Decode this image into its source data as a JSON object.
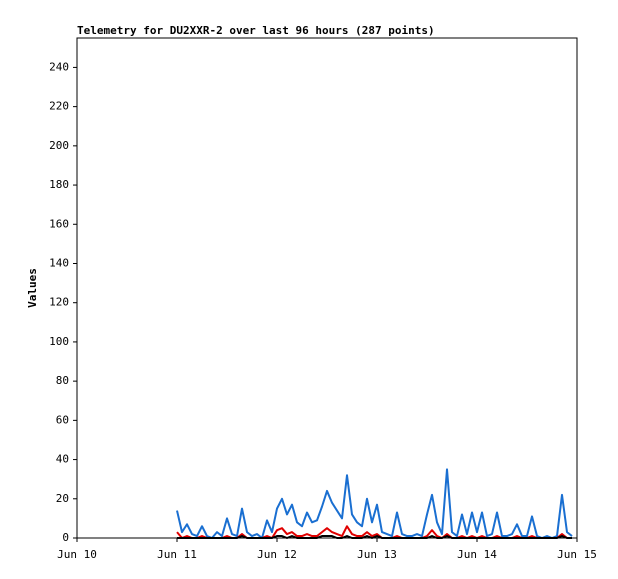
{
  "chart_data": {
    "type": "line",
    "title": "Telemetry for DU2XXR-2 over last 96 hours (287 points)",
    "y_label": "Values",
    "xlim": [
      0,
      5
    ],
    "xticks": [
      {
        "value": 0,
        "label": "Jun 10"
      },
      {
        "value": 1,
        "label": "Jun 11"
      },
      {
        "value": 2,
        "label": "Jun 12"
      },
      {
        "value": 3,
        "label": "Jun 13"
      },
      {
        "value": 4,
        "label": "Jun 14"
      },
      {
        "value": 5,
        "label": "Jun 15"
      }
    ],
    "ylim": [
      0,
      255
    ],
    "yticks": [
      0,
      20,
      40,
      60,
      80,
      100,
      120,
      140,
      160,
      180,
      200,
      220,
      240
    ],
    "x": [
      1.0,
      1.05,
      1.1,
      1.15,
      1.2,
      1.25,
      1.3,
      1.35,
      1.4,
      1.45,
      1.5,
      1.55,
      1.6,
      1.65,
      1.7,
      1.75,
      1.8,
      1.85,
      1.9,
      1.95,
      2.0,
      2.05,
      2.1,
      2.15,
      2.2,
      2.25,
      2.3,
      2.35,
      2.4,
      2.45,
      2.5,
      2.55,
      2.6,
      2.65,
      2.7,
      2.75,
      2.8,
      2.85,
      2.9,
      2.95,
      3.0,
      3.05,
      3.1,
      3.15,
      3.2,
      3.25,
      3.3,
      3.35,
      3.4,
      3.45,
      3.5,
      3.55,
      3.6,
      3.65,
      3.7,
      3.75,
      3.8,
      3.85,
      3.9,
      3.95,
      4.0,
      4.05,
      4.1,
      4.15,
      4.2,
      4.25,
      4.3,
      4.35,
      4.4,
      4.45,
      4.5,
      4.55,
      4.6,
      4.65,
      4.7,
      4.75,
      4.8,
      4.85,
      4.9,
      4.95
    ],
    "series": [
      {
        "name": "blue",
        "color": "#1a6fd1",
        "values": [
          14,
          3,
          7,
          2,
          1,
          6,
          1,
          0,
          3,
          1,
          10,
          2,
          1,
          15,
          3,
          1,
          2,
          0,
          9,
          3,
          15,
          20,
          12,
          17,
          8,
          6,
          13,
          8,
          9,
          16,
          24,
          18,
          14,
          10,
          32,
          12,
          8,
          6,
          20,
          8,
          17,
          3,
          2,
          1,
          13,
          2,
          1,
          1,
          2,
          1,
          12,
          22,
          8,
          2,
          35,
          3,
          1,
          12,
          2,
          13,
          3,
          13,
          1,
          2,
          13,
          1,
          1,
          2,
          7,
          1,
          1,
          11,
          1,
          0,
          1,
          0,
          1,
          22,
          3,
          1
        ]
      },
      {
        "name": "red",
        "color": "#e00000",
        "values": [
          3,
          0,
          1,
          0,
          0,
          1,
          0,
          0,
          0,
          0,
          1,
          0,
          0,
          2,
          0,
          0,
          0,
          0,
          1,
          0,
          4,
          5,
          2,
          3,
          1,
          1,
          2,
          1,
          1,
          3,
          5,
          3,
          2,
          1,
          6,
          2,
          1,
          1,
          3,
          1,
          2,
          0,
          0,
          0,
          1,
          0,
          0,
          0,
          0,
          0,
          1,
          4,
          1,
          0,
          2,
          0,
          0,
          1,
          0,
          1,
          0,
          1,
          0,
          0,
          1,
          0,
          0,
          0,
          1,
          0,
          0,
          1,
          0,
          0,
          0,
          0,
          0,
          2,
          0,
          0
        ]
      },
      {
        "name": "black",
        "color": "#000000",
        "values": [
          0,
          0,
          0,
          0,
          0,
          0,
          0,
          0,
          0,
          0,
          0,
          0,
          0,
          1,
          0,
          0,
          0,
          0,
          0,
          0,
          1,
          1,
          0,
          1,
          0,
          0,
          0,
          0,
          0,
          1,
          1,
          1,
          0,
          0,
          1,
          0,
          0,
          0,
          1,
          0,
          1,
          0,
          0,
          0,
          0,
          0,
          0,
          0,
          0,
          0,
          0,
          1,
          0,
          0,
          1,
          0,
          0,
          0,
          0,
          0,
          0,
          0,
          0,
          0,
          0,
          0,
          0,
          0,
          0,
          0,
          0,
          0,
          0,
          0,
          0,
          0,
          0,
          1,
          0,
          0
        ]
      }
    ]
  }
}
